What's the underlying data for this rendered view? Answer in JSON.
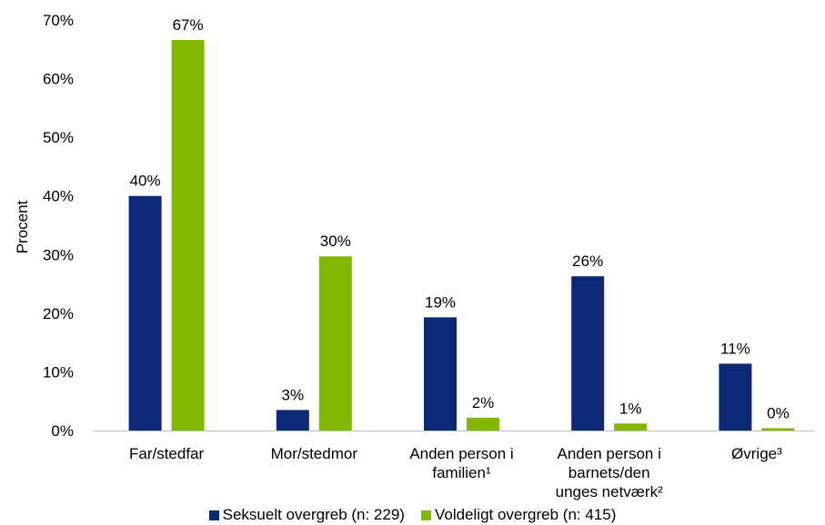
{
  "chart_data": {
    "type": "bar",
    "title": "",
    "xlabel": "",
    "ylabel": "Procent",
    "ylim": [
      0,
      70
    ],
    "yticks": [
      "0%",
      "10%",
      "20%",
      "30%",
      "40%",
      "50%",
      "60%",
      "70%"
    ],
    "grid": false,
    "legend_position": "bottom",
    "categories": [
      [
        "Far/stedfar"
      ],
      [
        "Mor/stedmor"
      ],
      [
        "Anden person i",
        "familien¹"
      ],
      [
        "Anden person i",
        "barnets/den",
        "unges netværk²"
      ],
      [
        "Øvrige³"
      ]
    ],
    "series": [
      {
        "name": "Seksuelt overgreb (n: 229)",
        "color": "#0d2875",
        "values": [
          40,
          3.5,
          19.3,
          26.3,
          11.4
        ],
        "labels": [
          "40%",
          "3%",
          "19%",
          "26%",
          "11%"
        ]
      },
      {
        "name": "Voldeligt overgreb (n: 415)",
        "color": "#82b800",
        "values": [
          66.6,
          29.7,
          2.2,
          1.2,
          0.4
        ],
        "labels": [
          "67%",
          "30%",
          "2%",
          "1%",
          "0%"
        ]
      }
    ]
  }
}
